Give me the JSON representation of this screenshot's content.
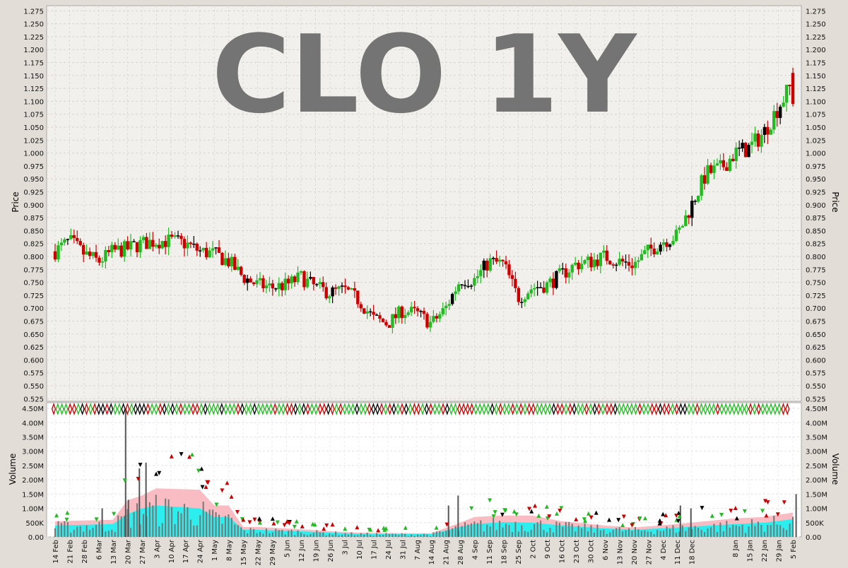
{
  "watermark": "CLO 1Y",
  "colors": {
    "up": "#22bb22",
    "down": "#cc0000",
    "neutral": "#000000",
    "volume_bar": "#777777",
    "volume_band_outer": "#f8b8bf",
    "volume_band_inner": "#22f0f0",
    "watermark": "#6e6e6e"
  },
  "chart_data": [
    {
      "type": "candlestick",
      "ylabel": "Price",
      "ylim": [
        0.52,
        1.285
      ],
      "yticks": [
        "1.275",
        "1.250",
        "1.225",
        "1.200",
        "1.175",
        "1.150",
        "1.125",
        "1.100",
        "1.075",
        "1.050",
        "1.025",
        "1.000",
        "0.975",
        "0.950",
        "0.925",
        "0.900",
        "0.875",
        "0.850",
        "0.825",
        "0.800",
        "0.775",
        "0.750",
        "0.725",
        "0.700",
        "0.675",
        "0.650",
        "0.625",
        "0.600",
        "0.575",
        "0.550",
        "0.525"
      ],
      "grid": true,
      "trend_anchors": [
        [
          "14 Feb",
          0.81
        ],
        [
          "21 Feb",
          0.83
        ],
        [
          "28 Feb",
          0.805
        ],
        [
          "6 Mar",
          0.79
        ],
        [
          "13 Mar",
          0.81
        ],
        [
          "20 Mar",
          0.815
        ],
        [
          "27 Mar",
          0.825
        ],
        [
          "3 Apr",
          0.83
        ],
        [
          "10 Apr",
          0.83
        ],
        [
          "17 Apr",
          0.825
        ],
        [
          "24 Apr",
          0.81
        ],
        [
          "1 May",
          0.805
        ],
        [
          "8 May",
          0.79
        ],
        [
          "15 May",
          0.76
        ],
        [
          "22 May",
          0.745
        ],
        [
          "29 May",
          0.74
        ],
        [
          "5 Jun",
          0.745
        ],
        [
          "12 Jun",
          0.76
        ],
        [
          "19 Jun",
          0.74
        ],
        [
          "26 Jun",
          0.73
        ],
        [
          "3 Jul",
          0.735
        ],
        [
          "10 Jul",
          0.715
        ],
        [
          "17 Jul",
          0.68
        ],
        [
          "24 Jul",
          0.67
        ],
        [
          "31 Jul",
          0.695
        ],
        [
          "7 Aug",
          0.69
        ],
        [
          "14 Aug",
          0.67
        ],
        [
          "21 Aug",
          0.7
        ],
        [
          "28 Aug",
          0.755
        ],
        [
          "4 Sep",
          0.755
        ],
        [
          "11 Sep",
          0.79
        ],
        [
          "18 Sep",
          0.785
        ],
        [
          "25 Sep",
          0.72
        ],
        [
          "2 Oct",
          0.74
        ],
        [
          "9 Oct",
          0.745
        ],
        [
          "16 Oct",
          0.765
        ],
        [
          "23 Oct",
          0.785
        ],
        [
          "30 Oct",
          0.79
        ],
        [
          "6 Nov",
          0.8
        ],
        [
          "13 Nov",
          0.79
        ],
        [
          "20 Nov",
          0.785
        ],
        [
          "27 Nov",
          0.81
        ],
        [
          "4 Dec",
          0.83
        ],
        [
          "11 Dec",
          0.84
        ],
        [
          "18 Dec",
          0.9
        ],
        [
          "25 Dec",
          0.96
        ],
        [
          "1 Jan",
          0.97
        ],
        [
          "8 Jan",
          1.0
        ],
        [
          "15 Jan",
          1.01
        ],
        [
          "22 Jan",
          1.04
        ],
        [
          "29 Jan",
          1.09
        ],
        [
          "5 Feb",
          1.135
        ]
      ],
      "last": {
        "open": 1.155,
        "high": 1.165,
        "low": 1.09,
        "close": 1.095
      }
    },
    {
      "type": "bar",
      "ylabel": "Volume",
      "ylim": [
        0,
        4700000
      ],
      "yticks": [
        "4.50M",
        "4.00M",
        "3.50M",
        "3.00M",
        "2.50M",
        "2.00M",
        "1.50M",
        "1.00M",
        "500K",
        "0.00"
      ],
      "x_tick_labels": [
        "14 Feb",
        "21 Feb",
        "28 Feb",
        "6 Mar",
        "13 Mar",
        "20 Mar",
        "27 Mar",
        "3 Apr",
        "10 Apr",
        "17 Apr",
        "24 Apr",
        "1 May",
        "8 May",
        "15 May",
        "22 May",
        "29 May",
        "5 Jun",
        "12 Jun",
        "19 Jun",
        "26 Jun",
        "3 Jul",
        "10 Jul",
        "17 Jul",
        "24 Jul",
        "31 Jul",
        "7 Aug",
        "14 Aug",
        "21 Aug",
        "28 Aug",
        "4 Sep",
        "11 Sep",
        "18 Sep",
        "25 Sep",
        "2 Oct",
        "9 Oct",
        "16 Oct",
        "23 Oct",
        "30 Oct",
        "6 Nov",
        "13 Nov",
        "20 Nov",
        "27 Nov",
        "4 Dec",
        "11 Dec",
        "18 Dec",
        "8 Jan",
        "15 Jan",
        "22 Jan",
        "29 Jan",
        "5 Feb"
      ],
      "spikes": [
        [
          "20 Mar",
          4500000
        ],
        [
          "27 Mar",
          2600000
        ],
        [
          "27 Mar",
          2400000
        ],
        [
          "28 Aug",
          1450000
        ],
        [
          "5 Feb",
          1500000
        ],
        [
          "20 Mar",
          1300000
        ],
        [
          "6 Mar",
          1000000
        ],
        [
          "21 Aug",
          1100000
        ],
        [
          "11 Dec",
          1100000
        ],
        [
          "18 Dec",
          1000000
        ]
      ],
      "band_outer": [
        [
          "14 Feb",
          550000
        ],
        [
          "13 Mar",
          600000
        ],
        [
          "20 Mar",
          1280000
        ],
        [
          "27 Mar",
          1450000
        ],
        [
          "3 Apr",
          1700000
        ],
        [
          "24 Apr",
          1650000
        ],
        [
          "1 May",
          1100000
        ],
        [
          "8 May",
          1100000
        ],
        [
          "15 May",
          350000
        ],
        [
          "22 May",
          350000
        ],
        [
          "12 Jun",
          270000
        ],
        [
          "26 Jun",
          200000
        ],
        [
          "10 Jul",
          150000
        ],
        [
          "31 Jul",
          130000
        ],
        [
          "14 Aug",
          130000
        ],
        [
          "28 Aug",
          500000
        ],
        [
          "4 Sep",
          700000
        ],
        [
          "18 Sep",
          750000
        ],
        [
          "2 Oct",
          750000
        ],
        [
          "16 Oct",
          550000
        ],
        [
          "6 Nov",
          400000
        ],
        [
          "20 Nov",
          330000
        ],
        [
          "11 Dec",
          450000
        ],
        [
          "8 Jan",
          650000
        ],
        [
          "22 Jan",
          700000
        ],
        [
          "5 Feb",
          850000
        ]
      ],
      "band_inner": [
        [
          "14 Feb",
          400000
        ],
        [
          "13 Mar",
          450000
        ],
        [
          "20 Mar",
          800000
        ],
        [
          "27 Mar",
          1000000
        ],
        [
          "3 Apr",
          1100000
        ],
        [
          "24 Apr",
          1000000
        ],
        [
          "1 May",
          700000
        ],
        [
          "8 May",
          700000
        ],
        [
          "15 May",
          250000
        ],
        [
          "22 May",
          250000
        ],
        [
          "12 Jun",
          200000
        ],
        [
          "26 Jun",
          150000
        ],
        [
          "10 Jul",
          110000
        ],
        [
          "31 Jul",
          100000
        ],
        [
          "14 Aug",
          100000
        ],
        [
          "28 Aug",
          350000
        ],
        [
          "4 Sep",
          450000
        ],
        [
          "18 Sep",
          520000
        ],
        [
          "2 Oct",
          500000
        ],
        [
          "16 Oct",
          400000
        ],
        [
          "6 Nov",
          300000
        ],
        [
          "20 Nov",
          250000
        ],
        [
          "11 Dec",
          330000
        ],
        [
          "8 Jan",
          450000
        ],
        [
          "22 Jan",
          500000
        ],
        [
          "5 Feb",
          620000
        ]
      ]
    }
  ]
}
